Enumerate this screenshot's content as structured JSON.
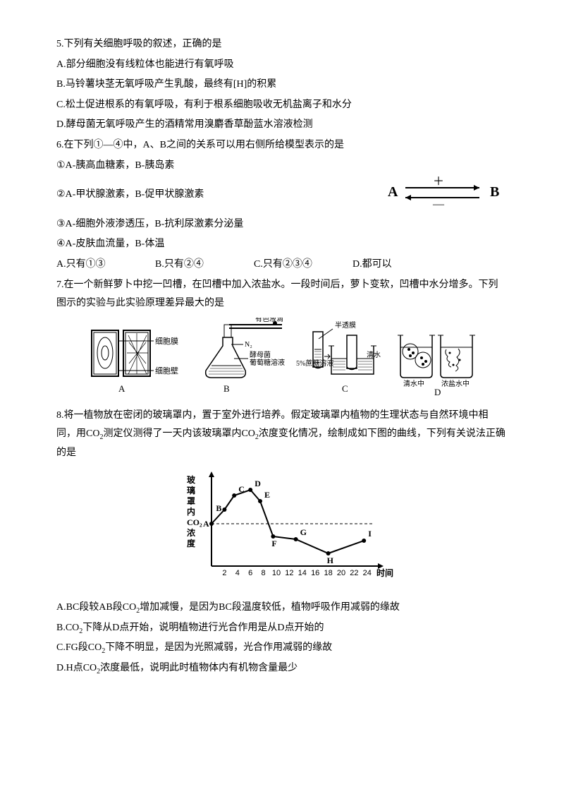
{
  "q5": {
    "stem": "5.下列有关细胞呼吸的叙述，正确的是",
    "A": "A.部分细胞没有线粒体也能进行有氧呼吸",
    "B": "B.马铃薯块茎无氧呼吸产生乳酸，最终有[H]的积累",
    "C": "C.松土促进根系的有氧呼吸，有利于根系细胞吸收无机盐离子和水分",
    "D": "D.酵母菌无氧呼吸产生的酒精常用溴麝香草酚蓝水溶液检测"
  },
  "q6": {
    "stem": "6.在下列①—④中，A、B之间的关系可以用右侧所给模型表示的是",
    "i1": "①A-胰高血糖素，B-胰岛素",
    "i2": "②A-甲状腺激素，B-促甲状腺激素",
    "i3": "③A-细胞外液渗透压，B-抗利尿激素分泌量",
    "i4": "④A-皮肤血流量，B-体温",
    "optA": "A.只有①③",
    "optB": "B.只有②④",
    "optC": "C.只有②③④",
    "optD": "D.都可以",
    "diagram": {
      "A_label": "A",
      "B_label": "B",
      "plus": "＋",
      "minus": "—",
      "font_size": 18,
      "line_color": "#000000"
    }
  },
  "q7": {
    "stem": "7.在一个新鲜萝卜中挖一凹槽，在凹槽中加入浓盐水。一段时间后，萝卜变软，凹槽中水分增多。下列图示的实验与此实验原理差异最大的是",
    "labels": {
      "A": "A",
      "B": "B",
      "C": "C",
      "D": "D",
      "cell_membrane": "细胞膜",
      "cell_wall": "细胞壁",
      "colored_drop": "有色液滴",
      "N2": "N₂",
      "yeast": "酵母菌",
      "glucose": "葡萄糖溶液",
      "semiperm": "半透膜",
      "sucrose": "5%蔗糖溶液",
      "water": "清水",
      "fresh_water": "清水中",
      "salt_water": "浓盐水中"
    },
    "colors": {
      "stroke": "#000000",
      "bg": "#ffffff"
    }
  },
  "q8": {
    "stem1": "8.将一植物放在密闭的玻璃罩内，置于室外进行培养。假定玻璃罩内植物的生理状态与自然环境中相同，用CO",
    "stem_sub": "2",
    "stem2": "测定仪测得了一天内该玻璃罩内CO",
    "stem_sub2": "2",
    "stem3": "浓度变化情况，绘制成如下图的曲线，下列有关说法正确的是",
    "chart": {
      "type": "line",
      "ylabel_lines": [
        "玻",
        "璃",
        "罩",
        "内",
        "CO₂",
        "浓",
        "度"
      ],
      "xlabel": "时间",
      "xticks": [
        2,
        4,
        6,
        8,
        10,
        12,
        14,
        16,
        18,
        20,
        22,
        24
      ],
      "points": {
        "A": {
          "x": 0,
          "y": 3.0
        },
        "B": {
          "x": 2,
          "y": 4.0
        },
        "C": {
          "x": 3.5,
          "y": 5.0
        },
        "D": {
          "x": 6,
          "y": 5.4
        },
        "E": {
          "x": 7.5,
          "y": 4.6
        },
        "F": {
          "x": 9.5,
          "y": 2.1
        },
        "G": {
          "x": 13,
          "y": 1.9
        },
        "H": {
          "x": 18,
          "y": 0.9
        },
        "I": {
          "x": 23.5,
          "y": 1.8
        }
      },
      "dashed_y": 3.0,
      "ylim": [
        0,
        6
      ],
      "xlim": [
        0,
        25
      ],
      "line_color": "#000000",
      "axis_color": "#000000",
      "marker": "circle",
      "marker_fill": "#000000",
      "marker_size": 3,
      "line_width": 2,
      "background_color": "#ffffff",
      "label_fontsize": 12,
      "tick_fontsize": 11
    },
    "A_1": "A.BC段较AB段CO",
    "A_2": "增加减慢，是因为BC段温度较低，植物呼吸作用减弱的缘故",
    "B_1": "B.CO",
    "B_2": "下降从D点开始，说明植物进行光合作用是从D点开始的",
    "C_1": "C.FG段CO",
    "C_2": "下降不明显，是因为光照减弱，光合作用减弱的缘故",
    "D": "D.H点CO",
    "D_2": "浓度最低，说明此时植物体内有机物含量最少"
  }
}
